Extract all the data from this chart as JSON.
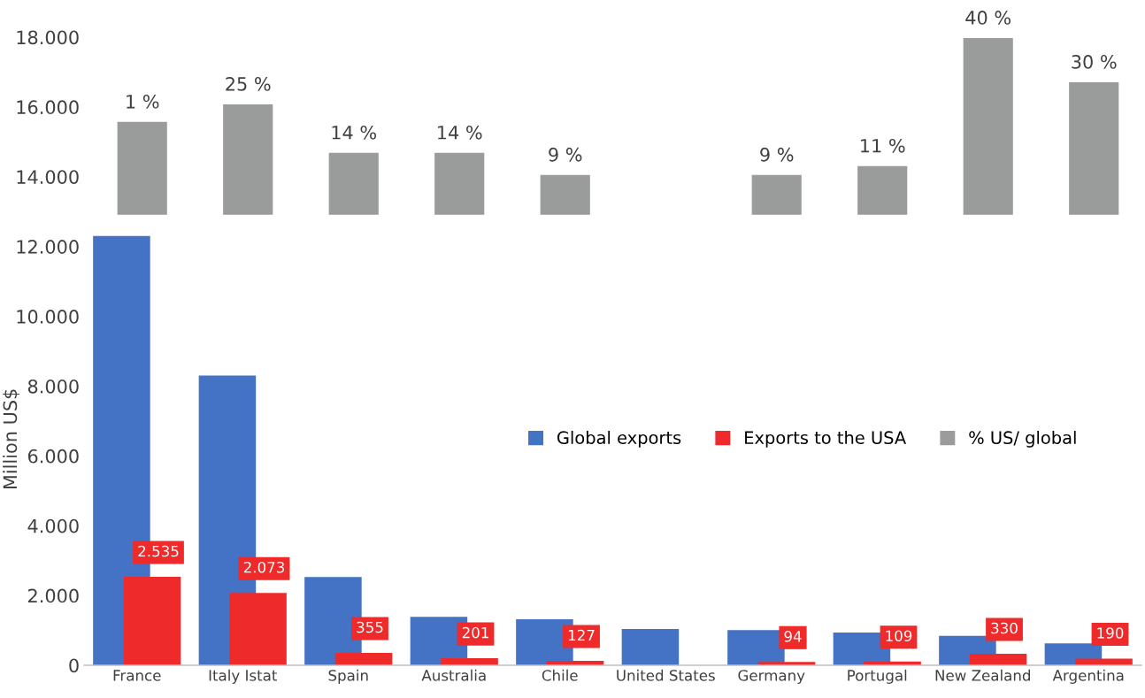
{
  "chart_data": {
    "type": "bar",
    "ylabel": "Million US$",
    "categories": [
      "France",
      "Italy Istat",
      "Spain",
      "Australia",
      "Chile",
      "United States",
      "Germany",
      "Portugal",
      "New Zealand",
      "Argentina"
    ],
    "series": [
      {
        "name": "Global exports",
        "color": "#4472c4",
        "values": [
          12300,
          8300,
          2530,
          1390,
          1320,
          1040,
          1010,
          940,
          840,
          630
        ]
      },
      {
        "name": "Exports to the USA",
        "color": "#ee2a2a",
        "values": [
          2535,
          2073,
          355,
          201,
          127,
          null,
          94,
          109,
          330,
          190
        ],
        "value_labels": [
          "2.535",
          "2.073",
          "355",
          "201",
          "127",
          null,
          "94",
          "109",
          "330",
          "190"
        ]
      },
      {
        "name": "% US/ global",
        "color": "#9a9c9c",
        "axis": "y2",
        "values": [
          21,
          25,
          14,
          14,
          9,
          null,
          9,
          11,
          40,
          30
        ],
        "value_labels": [
          null,
          "25 %",
          "14 %",
          "14 %",
          "9 %",
          null,
          "9 %",
          "11 %",
          "40 %",
          "30 %"
        ]
      }
    ],
    "ylim": [
      0,
      18000
    ],
    "yticks": [
      0,
      {
        "value": 2000,
        "label": "2.000"
      },
      {
        "value": 4000,
        "label": "4.000"
      },
      {
        "value": 6000,
        "label": "6.000"
      },
      {
        "value": 8000,
        "label": "8.000"
      },
      {
        "value": 10000,
        "label": "10.000"
      },
      {
        "value": 12000,
        "label": "12.000"
      },
      {
        "value": 14000,
        "label": "14.000"
      },
      {
        "value": 16000,
        "label": "16.000"
      },
      {
        "value": 18000,
        "label": "18.000"
      }
    ],
    "y2lim": [
      -102,
      40.2
    ],
    "annotations": [
      "1 %"
    ],
    "tick_labels": "xy",
    "legend": "center",
    "grid": false
  }
}
